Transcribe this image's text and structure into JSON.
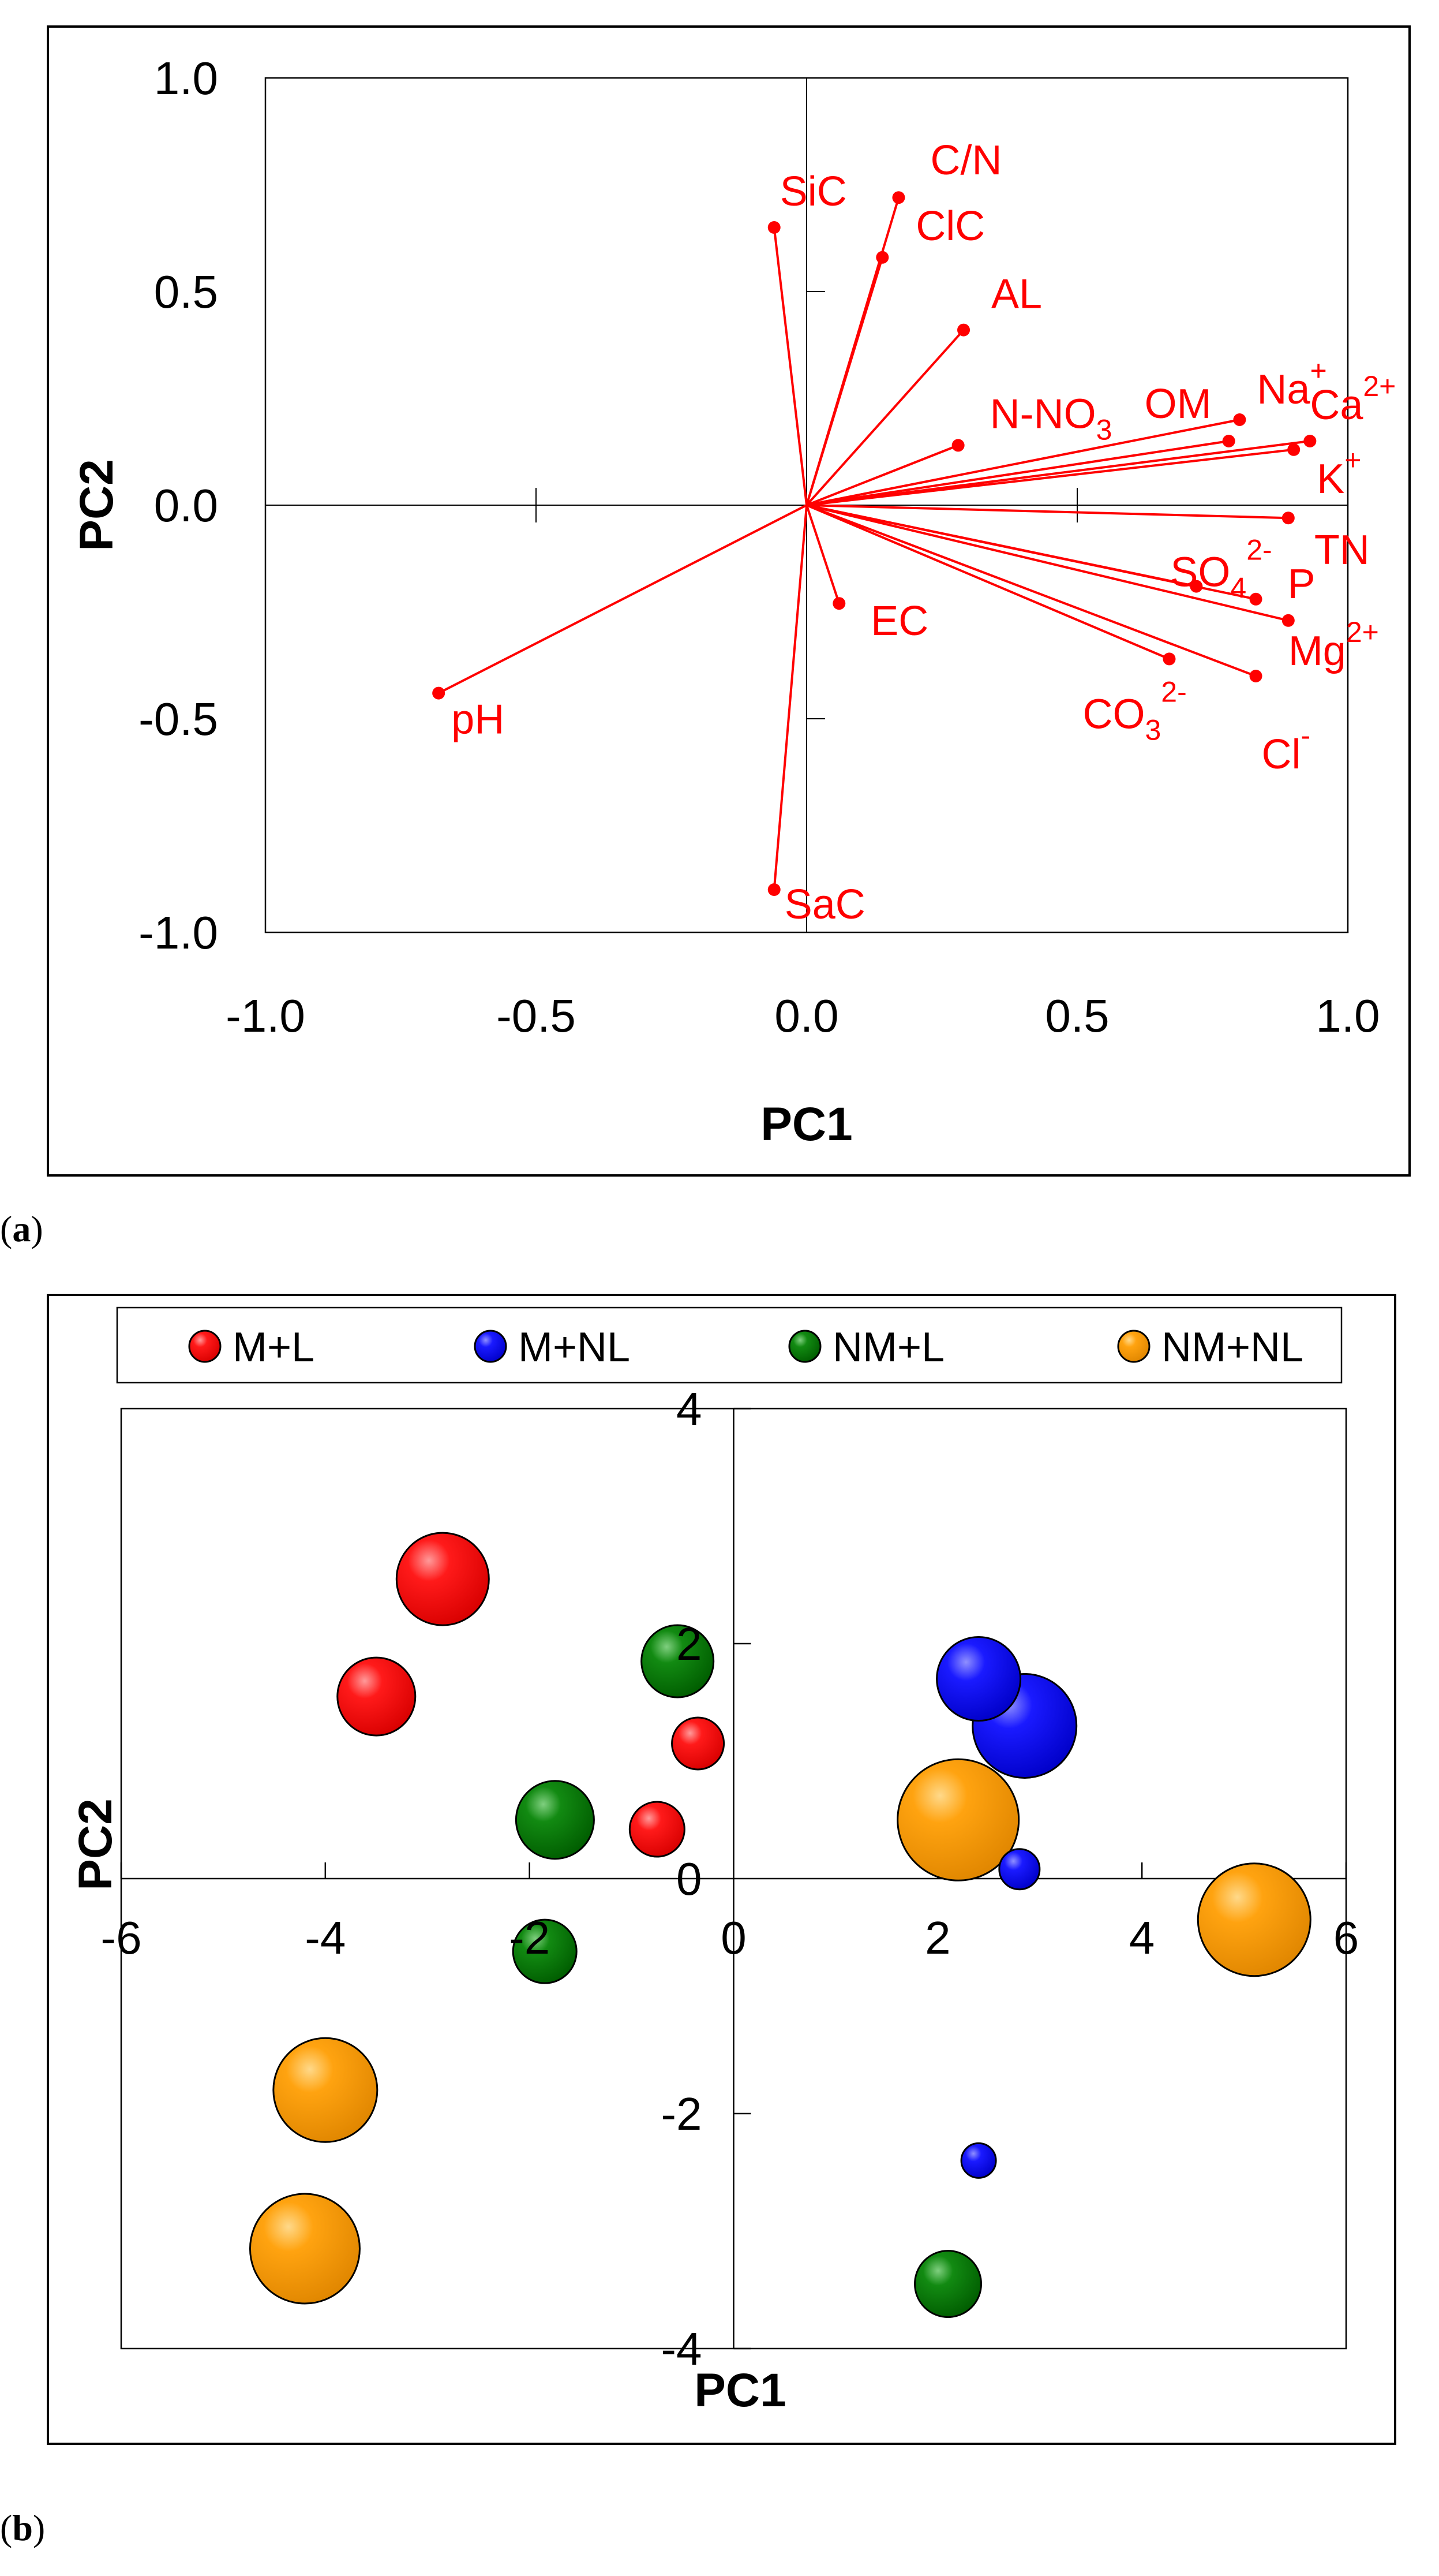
{
  "panels": {
    "a": {
      "label_letter": "a"
    },
    "b": {
      "label_letter": "b"
    }
  },
  "colors": {
    "loading": "#ff0000",
    "M+L": "#ff0000",
    "M+NL": "#0000ff",
    "NM+L": "#007a00",
    "NM+NL": "#ffa000",
    "axis": "#000000",
    "frame": "#000000"
  },
  "chart_data": [
    {
      "type": "scatter",
      "subtype": "pca-loading-biplot",
      "title": "",
      "xlabel": "PC1",
      "ylabel": "PC2",
      "xlim": [
        -1.0,
        1.0
      ],
      "ylim": [
        -1.0,
        1.0
      ],
      "x_ticks": [
        "-1.0",
        "-0.5",
        "0.0",
        "0.5",
        "1.0"
      ],
      "y_ticks": [
        "1.0",
        "0.5",
        "0.0",
        "-0.5",
        "-1.0"
      ],
      "grid": false,
      "loadings": [
        {
          "base": "SiC",
          "sup": "",
          "sub": "",
          "x": -0.06,
          "y": 0.65
        },
        {
          "base": "C/N",
          "sup": "",
          "sub": "",
          "x": 0.17,
          "y": 0.72
        },
        {
          "base": "ClC",
          "sup": "",
          "sub": "",
          "x": 0.14,
          "y": 0.58
        },
        {
          "base": "AL",
          "sup": "",
          "sub": "",
          "x": 0.29,
          "y": 0.41
        },
        {
          "base": "N-NO",
          "sup": "",
          "sub": "3",
          "x": 0.28,
          "y": 0.14
        },
        {
          "base": "OM",
          "sup": "",
          "sub": "",
          "x": 0.78,
          "y": 0.15
        },
        {
          "base": "Na",
          "sup": "+",
          "sub": "",
          "x": 0.8,
          "y": 0.2
        },
        {
          "base": "Ca",
          "sup": "2+",
          "sub": "",
          "x": 0.93,
          "y": 0.15
        },
        {
          "base": "K",
          "sup": "+",
          "sub": "",
          "x": 0.9,
          "y": 0.13
        },
        {
          "base": "TN",
          "sup": "",
          "sub": "",
          "x": 0.89,
          "y": -0.03
        },
        {
          "base": "SO",
          "sup": "2-",
          "sub": "4",
          "x": 0.72,
          "y": -0.19
        },
        {
          "base": "P",
          "sup": "",
          "sub": "",
          "x": 0.83,
          "y": -0.22
        },
        {
          "base": "Mg",
          "sup": "2+",
          "sub": "",
          "x": 0.89,
          "y": -0.27
        },
        {
          "base": "CO",
          "sup": "2-",
          "sub": "3",
          "x": 0.67,
          "y": -0.36
        },
        {
          "base": "Cl",
          "sup": "-",
          "sub": "",
          "x": 0.83,
          "y": -0.4
        },
        {
          "base": "EC",
          "sup": "",
          "sub": "",
          "x": 0.06,
          "y": -0.23
        },
        {
          "base": "pH",
          "sup": "",
          "sub": "",
          "x": -0.68,
          "y": -0.44
        },
        {
          "base": "SaC",
          "sup": "",
          "sub": "",
          "x": -0.06,
          "y": -0.9
        }
      ]
    },
    {
      "type": "scatter",
      "subtype": "bubble",
      "title": "",
      "xlabel": "PC1",
      "ylabel": "PC2",
      "xlim": [
        -6,
        6
      ],
      "ylim": [
        -4,
        4
      ],
      "x_ticks": [
        "-6",
        "-4",
        "-2",
        "0",
        "2",
        "4",
        "6"
      ],
      "y_ticks": [
        "4",
        "2",
        "0",
        "-2",
        "-4"
      ],
      "grid": false,
      "legend_position": "top",
      "legend": [
        "M+L",
        "M+NL",
        "NM+L",
        "NM+NL"
      ],
      "series": [
        {
          "name": "M+L",
          "points": [
            {
              "x": -2.85,
              "y": 2.55,
              "size": 1.6
            },
            {
              "x": -3.5,
              "y": 1.55,
              "size": 1.35
            },
            {
              "x": -0.35,
              "y": 1.15,
              "size": 0.9
            },
            {
              "x": -0.75,
              "y": 0.42,
              "size": 0.95
            }
          ]
        },
        {
          "name": "M+NL",
          "points": [
            {
              "x": 2.4,
              "y": 1.7,
              "size": 1.45
            },
            {
              "x": 2.85,
              "y": 1.3,
              "size": 1.8
            },
            {
              "x": 2.8,
              "y": 0.08,
              "size": 0.7
            },
            {
              "x": 2.4,
              "y": -2.4,
              "size": 0.6
            }
          ]
        },
        {
          "name": "NM+L",
          "points": [
            {
              "x": -0.55,
              "y": 1.85,
              "size": 1.25
            },
            {
              "x": -1.75,
              "y": 0.5,
              "size": 1.35
            },
            {
              "x": -1.85,
              "y": -0.62,
              "size": 1.1
            },
            {
              "x": 2.1,
              "y": -3.45,
              "size": 1.15
            }
          ]
        },
        {
          "name": "NM+NL",
          "points": [
            {
              "x": 2.2,
              "y": 0.5,
              "size": 2.1
            },
            {
              "x": 5.1,
              "y": -0.35,
              "size": 1.95
            },
            {
              "x": -4.0,
              "y": -1.8,
              "size": 1.8
            },
            {
              "x": -4.2,
              "y": -3.15,
              "size": 1.9
            }
          ]
        }
      ]
    }
  ]
}
